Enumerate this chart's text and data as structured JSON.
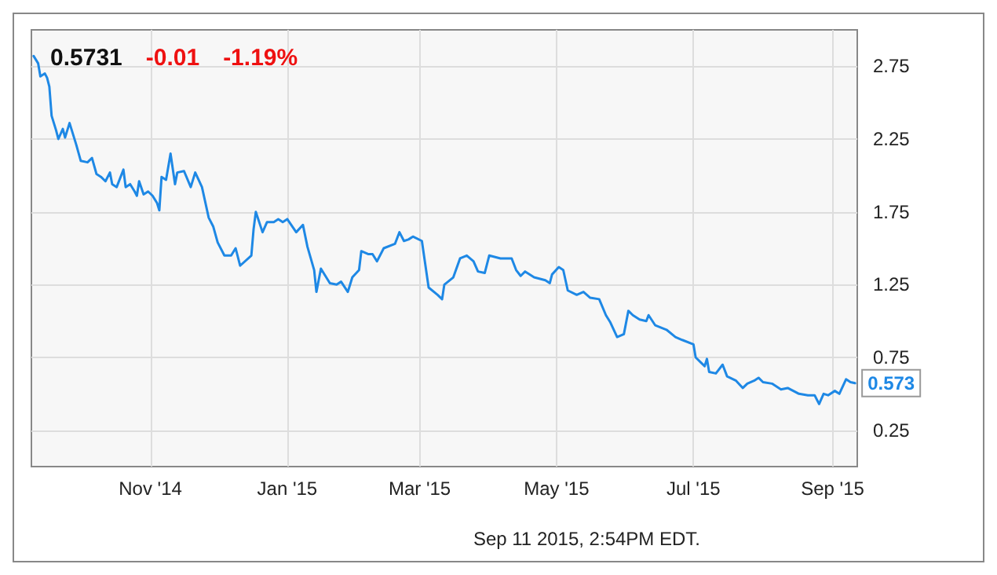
{
  "chart_data": {
    "type": "line",
    "title": "0.5731 -0.01 -1.19%",
    "annotations": [
      "Sep 11 2015, 2:54PM EDT."
    ],
    "x": [
      "2014-09-10",
      "2014-09-12",
      "2014-09-13",
      "2014-09-15",
      "2014-09-16",
      "2014-09-17",
      "2014-09-18",
      "2014-09-20",
      "2014-09-21",
      "2014-09-23",
      "2014-09-24",
      "2014-09-26",
      "2014-09-27",
      "2014-09-29",
      "2014-10-01",
      "2014-10-04",
      "2014-10-06",
      "2014-10-08",
      "2014-10-10",
      "2014-10-12",
      "2014-10-14",
      "2014-10-15",
      "2014-10-17",
      "2014-10-20",
      "2014-10-21",
      "2014-10-23",
      "2014-10-25",
      "2014-10-26",
      "2014-10-27",
      "2014-10-29",
      "2014-10-31",
      "2014-11-02",
      "2014-11-04",
      "2014-11-05",
      "2014-11-06",
      "2014-11-08",
      "2014-11-10",
      "2014-11-12",
      "2014-11-13",
      "2014-11-16",
      "2014-11-19",
      "2014-11-21",
      "2014-11-24",
      "2014-11-27",
      "2014-11-29",
      "2014-12-01",
      "2014-12-04",
      "2014-12-07",
      "2014-12-09",
      "2014-12-11",
      "2014-12-16",
      "2014-12-17",
      "2014-12-18",
      "2014-12-21",
      "2014-12-23",
      "2014-12-26",
      "2014-12-28",
      "2014-12-30",
      "2015-01-01",
      "2015-01-05",
      "2015-01-08",
      "2015-01-10",
      "2015-01-13",
      "2015-01-14",
      "2015-01-16",
      "2015-01-20",
      "2015-01-23",
      "2015-01-25",
      "2015-01-28",
      "2015-01-30",
      "2015-02-02",
      "2015-02-03",
      "2015-02-06",
      "2015-02-08",
      "2015-02-10",
      "2015-02-13",
      "2015-02-18",
      "2015-02-20",
      "2015-02-22",
      "2015-02-24",
      "2015-02-26",
      "2015-03-02",
      "2015-03-05",
      "2015-03-09",
      "2015-03-11",
      "2015-03-12",
      "2015-03-16",
      "2015-03-19",
      "2015-03-22",
      "2015-03-25",
      "2015-03-27",
      "2015-03-30",
      "2015-04-01",
      "2015-04-06",
      "2015-04-11",
      "2015-04-13",
      "2015-04-15",
      "2015-04-17",
      "2015-04-21",
      "2015-04-26",
      "2015-04-28",
      "2015-04-29",
      "2015-05-02",
      "2015-05-04",
      "2015-05-06",
      "2015-05-10",
      "2015-05-13",
      "2015-05-16",
      "2015-05-20",
      "2015-05-23",
      "2015-05-25",
      "2015-05-28",
      "2015-05-31",
      "2015-06-02",
      "2015-06-04",
      "2015-06-07",
      "2015-06-10",
      "2015-06-11",
      "2015-06-14",
      "2015-06-19",
      "2015-06-23",
      "2015-06-26",
      "2015-07-01",
      "2015-07-02",
      "2015-07-04",
      "2015-07-06",
      "2015-07-07",
      "2015-07-08",
      "2015-07-11",
      "2015-07-14",
      "2015-07-16",
      "2015-07-20",
      "2015-07-23",
      "2015-07-25",
      "2015-07-28",
      "2015-07-30",
      "2015-08-01",
      "2015-08-05",
      "2015-08-09",
      "2015-08-12",
      "2015-08-17",
      "2015-08-21",
      "2015-08-24",
      "2015-08-26",
      "2015-08-28",
      "2015-08-30",
      "2015-09-02",
      "2015-09-04",
      "2015-09-07",
      "2015-09-09",
      "2015-09-11"
    ],
    "series": [
      {
        "color": "#1e88e5",
        "values": [
          2.82,
          2.77,
          2.68,
          2.7,
          2.67,
          2.61,
          2.41,
          2.31,
          2.25,
          2.32,
          2.26,
          2.36,
          2.31,
          2.21,
          2.1,
          2.09,
          2.12,
          2.01,
          1.99,
          1.96,
          2.02,
          1.94,
          1.92,
          2.04,
          1.92,
          1.94,
          1.89,
          1.86,
          1.96,
          1.87,
          1.89,
          1.86,
          1.81,
          1.76,
          1.99,
          1.97,
          2.15,
          1.94,
          2.02,
          2.03,
          1.92,
          2.02,
          1.92,
          1.71,
          1.65,
          1.54,
          1.45,
          1.45,
          1.5,
          1.38,
          1.45,
          1.63,
          1.75,
          1.61,
          1.68,
          1.68,
          1.7,
          1.68,
          1.7,
          1.61,
          1.66,
          1.51,
          1.35,
          1.2,
          1.36,
          1.26,
          1.25,
          1.27,
          1.2,
          1.3,
          1.35,
          1.48,
          1.46,
          1.46,
          1.41,
          1.5,
          1.53,
          1.61,
          1.55,
          1.56,
          1.58,
          1.55,
          1.23,
          1.18,
          1.15,
          1.25,
          1.3,
          1.43,
          1.45,
          1.41,
          1.34,
          1.33,
          1.45,
          1.43,
          1.43,
          1.35,
          1.31,
          1.34,
          1.3,
          1.28,
          1.26,
          1.32,
          1.37,
          1.35,
          1.21,
          1.18,
          1.2,
          1.16,
          1.15,
          1.04,
          0.99,
          0.89,
          0.91,
          1.07,
          1.04,
          1.01,
          1.0,
          1.04,
          0.97,
          0.94,
          0.89,
          0.87,
          0.84,
          0.75,
          0.72,
          0.69,
          0.74,
          0.65,
          0.64,
          0.7,
          0.62,
          0.59,
          0.54,
          0.57,
          0.59,
          0.61,
          0.58,
          0.57,
          0.53,
          0.54,
          0.5,
          0.49,
          0.49,
          0.43,
          0.5,
          0.49,
          0.52,
          0.5,
          0.6,
          0.58,
          0.573
        ],
        "value_labels": [
          null,
          null,
          null,
          null,
          null,
          null,
          null,
          null,
          null,
          null,
          null,
          null,
          null,
          null,
          null,
          null,
          null,
          null,
          null,
          null,
          null,
          null,
          null,
          null,
          null,
          null,
          null,
          null,
          null,
          null,
          null,
          null,
          null,
          null,
          null,
          null,
          null,
          null,
          null,
          null,
          null,
          null,
          null,
          null,
          null,
          null,
          null,
          null,
          null,
          null,
          null,
          null,
          null,
          null,
          null,
          null,
          null,
          null,
          null,
          null,
          null,
          null,
          null,
          null,
          null,
          null,
          null,
          null,
          null,
          null,
          null,
          null,
          null,
          null,
          null,
          null,
          null,
          null,
          null,
          null,
          null,
          null,
          null,
          null,
          null,
          null,
          null,
          null,
          null,
          null,
          null,
          null,
          null,
          null,
          null,
          null,
          null,
          null,
          null,
          null,
          null,
          null,
          null,
          null,
          null,
          null,
          null,
          null,
          null,
          null,
          null,
          null,
          null,
          null,
          null,
          null,
          null,
          null,
          null,
          null,
          null,
          null,
          null,
          null,
          null,
          null,
          null,
          null,
          null,
          null,
          null,
          null,
          null,
          null,
          null,
          null,
          null,
          null,
          null,
          null,
          null,
          null,
          null,
          null,
          null,
          null,
          null,
          null,
          null,
          null,
          "0.573"
        ]
      }
    ],
    "xlim": [
      "2014-09-09",
      "2015-09-12"
    ],
    "xticks": [
      {
        "value": "2014-11-01",
        "label": "Nov '14"
      },
      {
        "value": "2015-01-01",
        "label": "Jan '15"
      },
      {
        "value": "2015-03-01",
        "label": "Mar '15"
      },
      {
        "value": "2015-05-01",
        "label": "May '15"
      },
      {
        "value": "2015-07-01",
        "label": "Jul '15"
      },
      {
        "value": "2015-09-01",
        "label": "Sep '15"
      }
    ],
    "ylim": [
      0,
      3
    ],
    "yticks": [
      0.25,
      0.75,
      1.25,
      1.75,
      2.25,
      2.75
    ],
    "grid": true,
    "marker": "none",
    "line_style": "solid"
  }
}
